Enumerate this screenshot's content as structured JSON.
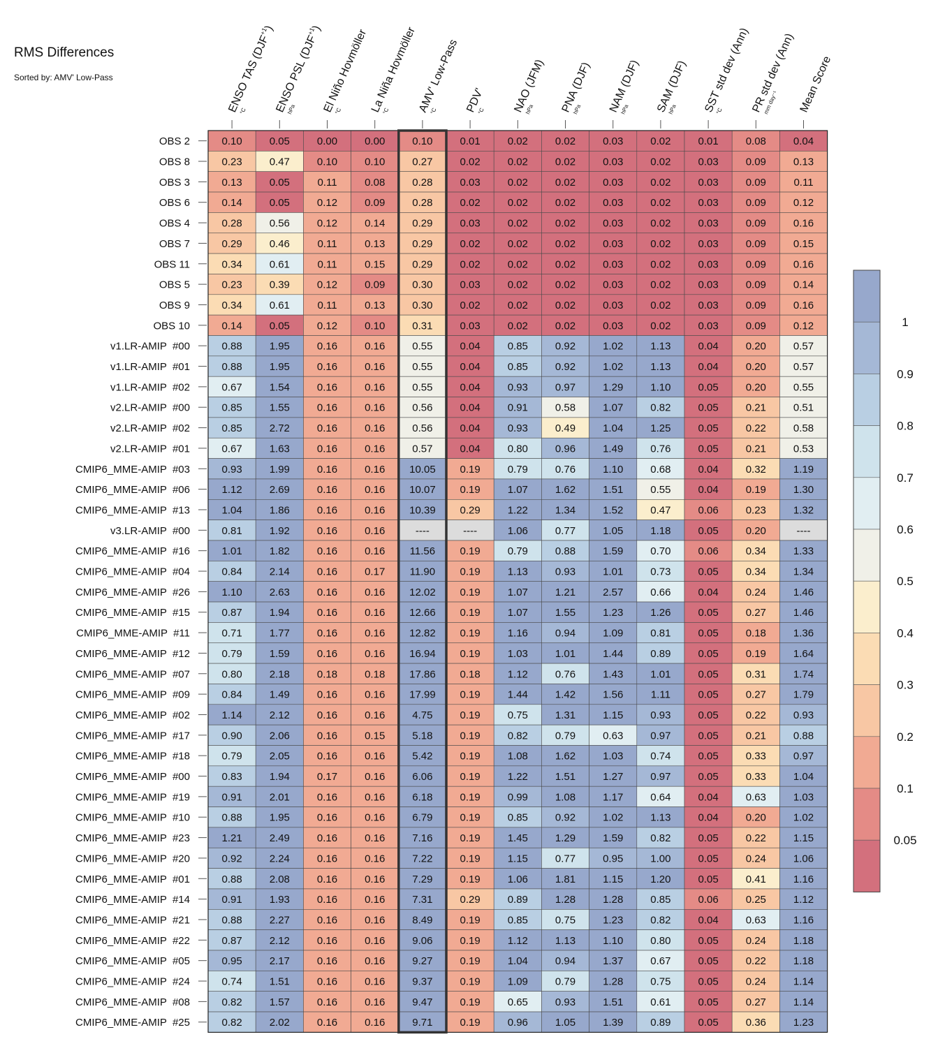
{
  "chart_data": {
    "type": "heatmap",
    "title": "RMS Differences",
    "subtitle": "Sorted by: AMV' Low-Pass",
    "columns": [
      {
        "label": "ENSO TAS (DJF",
        "sup": "+1",
        "tail": ")",
        "unit": "°C"
      },
      {
        "label": "ENSO PSL (DJF",
        "sup": "+1",
        "tail": ")",
        "unit": "hPa"
      },
      {
        "label": "El Niño Hovmöller",
        "sup": "",
        "tail": "",
        "unit": "°C"
      },
      {
        "label": "La Niña Hovmöller",
        "sup": "",
        "tail": "",
        "unit": "°C"
      },
      {
        "label": "AMV' Low-Pass",
        "sup": "",
        "tail": "",
        "unit": "°C"
      },
      {
        "label": "PDV'",
        "sup": "",
        "tail": "",
        "unit": "°C"
      },
      {
        "label": "NAO (JFM)",
        "sup": "",
        "tail": "",
        "unit": "hPa"
      },
      {
        "label": "PNA (DJF)",
        "sup": "",
        "tail": "",
        "unit": "hPa"
      },
      {
        "label": "NAM (DJF)",
        "sup": "",
        "tail": "",
        "unit": "hPa"
      },
      {
        "label": "SAM (DJF)",
        "sup": "",
        "tail": "",
        "unit": "hPa"
      },
      {
        "label": "SST std dev (Ann)",
        "sup": "",
        "tail": "",
        "unit": "°C"
      },
      {
        "label": "PR std dev (Ann)",
        "sup": "",
        "tail": "",
        "unit": "mm day⁻¹"
      },
      {
        "label": "Mean Score",
        "sup": "",
        "tail": "",
        "unit": ""
      }
    ],
    "highlight_column": 4,
    "rows": [
      {
        "name": "OBS 2",
        "values": [
          "0.10",
          "0.05",
          "0.00",
          "0.00",
          "0.10",
          "0.01",
          "0.02",
          "0.02",
          "0.03",
          "0.02",
          "0.01",
          "0.08",
          "0.04"
        ]
      },
      {
        "name": "OBS 8",
        "values": [
          "0.23",
          "0.47",
          "0.10",
          "0.10",
          "0.27",
          "0.02",
          "0.02",
          "0.02",
          "0.03",
          "0.02",
          "0.03",
          "0.09",
          "0.13"
        ]
      },
      {
        "name": "OBS 3",
        "values": [
          "0.13",
          "0.05",
          "0.11",
          "0.08",
          "0.28",
          "0.03",
          "0.02",
          "0.02",
          "0.03",
          "0.02",
          "0.03",
          "0.09",
          "0.11"
        ]
      },
      {
        "name": "OBS 6",
        "values": [
          "0.14",
          "0.05",
          "0.12",
          "0.09",
          "0.28",
          "0.02",
          "0.02",
          "0.02",
          "0.03",
          "0.02",
          "0.03",
          "0.09",
          "0.12"
        ]
      },
      {
        "name": "OBS 4",
        "values": [
          "0.28",
          "0.56",
          "0.12",
          "0.14",
          "0.29",
          "0.03",
          "0.02",
          "0.02",
          "0.03",
          "0.02",
          "0.03",
          "0.09",
          "0.16"
        ]
      },
      {
        "name": "OBS 7",
        "values": [
          "0.29",
          "0.46",
          "0.11",
          "0.13",
          "0.29",
          "0.02",
          "0.02",
          "0.02",
          "0.03",
          "0.02",
          "0.03",
          "0.09",
          "0.15"
        ]
      },
      {
        "name": "OBS 11",
        "values": [
          "0.34",
          "0.61",
          "0.11",
          "0.15",
          "0.29",
          "0.02",
          "0.02",
          "0.02",
          "0.03",
          "0.02",
          "0.03",
          "0.09",
          "0.16"
        ]
      },
      {
        "name": "OBS 5",
        "values": [
          "0.23",
          "0.39",
          "0.12",
          "0.09",
          "0.30",
          "0.03",
          "0.02",
          "0.02",
          "0.03",
          "0.02",
          "0.03",
          "0.09",
          "0.14"
        ]
      },
      {
        "name": "OBS 9",
        "values": [
          "0.34",
          "0.61",
          "0.11",
          "0.13",
          "0.30",
          "0.02",
          "0.02",
          "0.02",
          "0.03",
          "0.02",
          "0.03",
          "0.09",
          "0.16"
        ]
      },
      {
        "name": "OBS 10",
        "values": [
          "0.14",
          "0.05",
          "0.12",
          "0.10",
          "0.31",
          "0.03",
          "0.02",
          "0.02",
          "0.03",
          "0.02",
          "0.03",
          "0.09",
          "0.12"
        ]
      },
      {
        "name": "v1.LR-AMIP  #00",
        "values": [
          "0.88",
          "1.95",
          "0.16",
          "0.16",
          "0.55",
          "0.04",
          "0.85",
          "0.92",
          "1.02",
          "1.13",
          "0.04",
          "0.20",
          "0.57"
        ]
      },
      {
        "name": "v1.LR-AMIP  #01",
        "values": [
          "0.88",
          "1.95",
          "0.16",
          "0.16",
          "0.55",
          "0.04",
          "0.85",
          "0.92",
          "1.02",
          "1.13",
          "0.04",
          "0.20",
          "0.57"
        ]
      },
      {
        "name": "v1.LR-AMIP  #02",
        "values": [
          "0.67",
          "1.54",
          "0.16",
          "0.16",
          "0.55",
          "0.04",
          "0.93",
          "0.97",
          "1.29",
          "1.10",
          "0.05",
          "0.20",
          "0.55"
        ]
      },
      {
        "name": "v2.LR-AMIP  #00",
        "values": [
          "0.85",
          "1.55",
          "0.16",
          "0.16",
          "0.56",
          "0.04",
          "0.91",
          "0.58",
          "1.07",
          "0.82",
          "0.05",
          "0.21",
          "0.51"
        ]
      },
      {
        "name": "v2.LR-AMIP  #02",
        "values": [
          "0.85",
          "2.72",
          "0.16",
          "0.16",
          "0.56",
          "0.04",
          "0.93",
          "0.49",
          "1.04",
          "1.25",
          "0.05",
          "0.22",
          "0.58"
        ]
      },
      {
        "name": "v2.LR-AMIP  #01",
        "values": [
          "0.67",
          "1.63",
          "0.16",
          "0.16",
          "0.57",
          "0.04",
          "0.80",
          "0.96",
          "1.49",
          "0.76",
          "0.05",
          "0.21",
          "0.53"
        ]
      },
      {
        "name": "CMIP6_MME-AMIP  #03",
        "values": [
          "0.93",
          "1.99",
          "0.16",
          "0.16",
          "10.05",
          "0.19",
          "0.79",
          "0.76",
          "1.10",
          "0.68",
          "0.04",
          "0.32",
          "1.19"
        ]
      },
      {
        "name": "CMIP6_MME-AMIP  #06",
        "values": [
          "1.12",
          "2.69",
          "0.16",
          "0.16",
          "10.07",
          "0.19",
          "1.07",
          "1.62",
          "1.51",
          "0.55",
          "0.04",
          "0.19",
          "1.30"
        ]
      },
      {
        "name": "CMIP6_MME-AMIP  #13",
        "values": [
          "1.04",
          "1.86",
          "0.16",
          "0.16",
          "10.39",
          "0.29",
          "1.22",
          "1.34",
          "1.52",
          "0.47",
          "0.06",
          "0.23",
          "1.32"
        ]
      },
      {
        "name": "v3.LR-AMIP  #00",
        "values": [
          "0.81",
          "1.92",
          "0.16",
          "0.16",
          "----",
          "----",
          "1.06",
          "0.77",
          "1.05",
          "1.18",
          "0.05",
          "0.20",
          "----"
        ]
      },
      {
        "name": "CMIP6_MME-AMIP  #16",
        "values": [
          "1.01",
          "1.82",
          "0.16",
          "0.16",
          "11.56",
          "0.19",
          "0.79",
          "0.88",
          "1.59",
          "0.70",
          "0.06",
          "0.34",
          "1.33"
        ]
      },
      {
        "name": "CMIP6_MME-AMIP  #04",
        "values": [
          "0.84",
          "2.14",
          "0.16",
          "0.17",
          "11.90",
          "0.19",
          "1.13",
          "0.93",
          "1.01",
          "0.73",
          "0.05",
          "0.34",
          "1.34"
        ]
      },
      {
        "name": "CMIP6_MME-AMIP  #26",
        "values": [
          "1.10",
          "2.63",
          "0.16",
          "0.16",
          "12.02",
          "0.19",
          "1.07",
          "1.21",
          "2.57",
          "0.66",
          "0.04",
          "0.24",
          "1.46"
        ]
      },
      {
        "name": "CMIP6_MME-AMIP  #15",
        "values": [
          "0.87",
          "1.94",
          "0.16",
          "0.16",
          "12.66",
          "0.19",
          "1.07",
          "1.55",
          "1.23",
          "1.26",
          "0.05",
          "0.27",
          "1.46"
        ]
      },
      {
        "name": "CMIP6_MME-AMIP  #11",
        "values": [
          "0.71",
          "1.77",
          "0.16",
          "0.16",
          "12.82",
          "0.19",
          "1.16",
          "0.94",
          "1.09",
          "0.81",
          "0.05",
          "0.18",
          "1.36"
        ]
      },
      {
        "name": "CMIP6_MME-AMIP  #12",
        "values": [
          "0.79",
          "1.59",
          "0.16",
          "0.16",
          "16.94",
          "0.19",
          "1.03",
          "1.01",
          "1.44",
          "0.89",
          "0.05",
          "0.19",
          "1.64"
        ]
      },
      {
        "name": "CMIP6_MME-AMIP  #07",
        "values": [
          "0.80",
          "2.18",
          "0.18",
          "0.18",
          "17.86",
          "0.18",
          "1.12",
          "0.76",
          "1.43",
          "1.01",
          "0.05",
          "0.31",
          "1.74"
        ]
      },
      {
        "name": "CMIP6_MME-AMIP  #09",
        "values": [
          "0.84",
          "1.49",
          "0.16",
          "0.16",
          "17.99",
          "0.19",
          "1.44",
          "1.42",
          "1.56",
          "1.11",
          "0.05",
          "0.27",
          "1.79"
        ]
      },
      {
        "name": "CMIP6_MME-AMIP  #02",
        "values": [
          "1.14",
          "2.12",
          "0.16",
          "0.16",
          "4.75",
          "0.19",
          "0.75",
          "1.31",
          "1.15",
          "0.93",
          "0.05",
          "0.22",
          "0.93"
        ]
      },
      {
        "name": "CMIP6_MME-AMIP  #17",
        "values": [
          "0.90",
          "2.06",
          "0.16",
          "0.15",
          "5.18",
          "0.19",
          "0.82",
          "0.79",
          "0.63",
          "0.97",
          "0.05",
          "0.21",
          "0.88"
        ]
      },
      {
        "name": "CMIP6_MME-AMIP  #18",
        "values": [
          "0.79",
          "2.05",
          "0.16",
          "0.16",
          "5.42",
          "0.19",
          "1.08",
          "1.62",
          "1.03",
          "0.74",
          "0.05",
          "0.33",
          "0.97"
        ]
      },
      {
        "name": "CMIP6_MME-AMIP  #00",
        "values": [
          "0.83",
          "1.94",
          "0.17",
          "0.16",
          "6.06",
          "0.19",
          "1.22",
          "1.51",
          "1.27",
          "0.97",
          "0.05",
          "0.33",
          "1.04"
        ]
      },
      {
        "name": "CMIP6_MME-AMIP  #19",
        "values": [
          "0.91",
          "2.01",
          "0.16",
          "0.16",
          "6.18",
          "0.19",
          "0.99",
          "1.08",
          "1.17",
          "0.64",
          "0.04",
          "0.63",
          "1.03"
        ]
      },
      {
        "name": "CMIP6_MME-AMIP  #10",
        "values": [
          "0.88",
          "1.95",
          "0.16",
          "0.16",
          "6.79",
          "0.19",
          "0.85",
          "0.92",
          "1.02",
          "1.13",
          "0.04",
          "0.20",
          "1.02"
        ]
      },
      {
        "name": "CMIP6_MME-AMIP  #23",
        "values": [
          "1.21",
          "2.49",
          "0.16",
          "0.16",
          "7.16",
          "0.19",
          "1.45",
          "1.29",
          "1.59",
          "0.82",
          "0.05",
          "0.22",
          "1.15"
        ]
      },
      {
        "name": "CMIP6_MME-AMIP  #20",
        "values": [
          "0.92",
          "2.24",
          "0.16",
          "0.16",
          "7.22",
          "0.19",
          "1.15",
          "0.77",
          "0.95",
          "1.00",
          "0.05",
          "0.24",
          "1.06"
        ]
      },
      {
        "name": "CMIP6_MME-AMIP  #01",
        "values": [
          "0.88",
          "2.08",
          "0.16",
          "0.16",
          "7.29",
          "0.19",
          "1.06",
          "1.81",
          "1.15",
          "1.20",
          "0.05",
          "0.41",
          "1.16"
        ]
      },
      {
        "name": "CMIP6_MME-AMIP  #14",
        "values": [
          "0.91",
          "1.93",
          "0.16",
          "0.16",
          "7.31",
          "0.29",
          "0.89",
          "1.28",
          "1.28",
          "0.85",
          "0.06",
          "0.25",
          "1.12"
        ]
      },
      {
        "name": "CMIP6_MME-AMIP  #21",
        "values": [
          "0.88",
          "2.27",
          "0.16",
          "0.16",
          "8.49",
          "0.19",
          "0.85",
          "0.75",
          "1.23",
          "0.82",
          "0.04",
          "0.63",
          "1.16"
        ]
      },
      {
        "name": "CMIP6_MME-AMIP  #22",
        "values": [
          "0.87",
          "2.12",
          "0.16",
          "0.16",
          "9.06",
          "0.19",
          "1.12",
          "1.13",
          "1.10",
          "0.80",
          "0.05",
          "0.24",
          "1.18"
        ]
      },
      {
        "name": "CMIP6_MME-AMIP  #05",
        "values": [
          "0.95",
          "2.17",
          "0.16",
          "0.16",
          "9.27",
          "0.19",
          "1.04",
          "0.94",
          "1.37",
          "0.67",
          "0.05",
          "0.22",
          "1.18"
        ]
      },
      {
        "name": "CMIP6_MME-AMIP  #24",
        "values": [
          "0.74",
          "1.51",
          "0.16",
          "0.16",
          "9.37",
          "0.19",
          "1.09",
          "0.79",
          "1.28",
          "0.75",
          "0.05",
          "0.24",
          "1.14"
        ]
      },
      {
        "name": "CMIP6_MME-AMIP  #08",
        "values": [
          "0.82",
          "1.57",
          "0.16",
          "0.16",
          "9.47",
          "0.19",
          "0.65",
          "0.93",
          "1.51",
          "0.61",
          "0.05",
          "0.27",
          "1.14"
        ]
      },
      {
        "name": "CMIP6_MME-AMIP  #25",
        "values": [
          "0.82",
          "2.02",
          "0.16",
          "0.16",
          "9.71",
          "0.19",
          "0.96",
          "1.05",
          "1.39",
          "0.89",
          "0.05",
          "0.36",
          "1.23"
        ]
      }
    ],
    "colorbar": {
      "tick_labels": [
        "1",
        "0.9",
        "0.8",
        "0.7",
        "0.6",
        "0.5",
        "0.4",
        "0.3",
        "0.2",
        "0.1",
        "0.05"
      ],
      "bins_top_to_bottom": [
        "#97a8cc",
        "#a5b8d6",
        "#b9cfe3",
        "#cfe3ec",
        "#e1eef2",
        "#f0f0e8",
        "#fbeecd",
        "#fbdcb4",
        "#f8c7a4",
        "#f1aa93",
        "#e48b86",
        "#d3707d"
      ],
      "missing_color": "#dcdcdc"
    }
  }
}
